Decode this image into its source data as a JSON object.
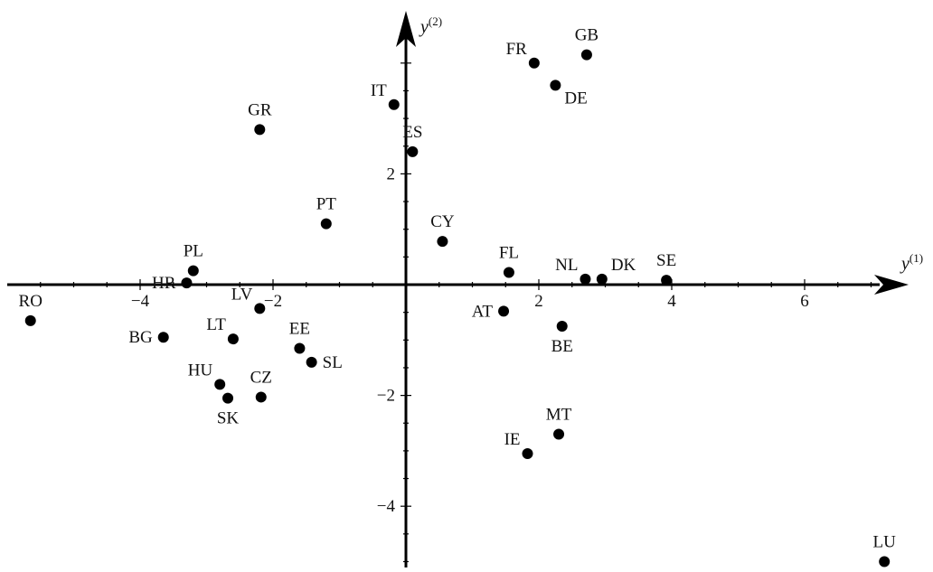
{
  "chart_data": {
    "type": "scatter",
    "title": "",
    "xlabel": "y",
    "xlabel_sup": "(1)",
    "ylabel": "y",
    "ylabel_sup": "(2)",
    "xlim": [
      -5.8,
      7.6
    ],
    "ylim": [
      -5.3,
      4.4
    ],
    "xticks": [
      -4,
      -2,
      2,
      4,
      6
    ],
    "xtick_labels": [
      "−4",
      "−2",
      "2",
      "4",
      "6"
    ],
    "yticks": [
      -4,
      -2,
      2
    ],
    "ytick_labels": [
      "−4",
      "−2",
      "2"
    ],
    "grid": false,
    "legend": "none",
    "point_color": "#000000",
    "points": [
      {
        "label": "RO",
        "x": -5.65,
        "y": -0.65,
        "lpos": "above"
      },
      {
        "label": "BG",
        "x": -3.65,
        "y": -0.95,
        "lpos": "left"
      },
      {
        "label": "HR",
        "x": -3.3,
        "y": 0.03,
        "lpos": "left"
      },
      {
        "label": "PL",
        "x": -3.2,
        "y": 0.25,
        "lpos": "above"
      },
      {
        "label": "LT",
        "x": -2.6,
        "y": -0.98,
        "lpos": "upleft"
      },
      {
        "label": "LV",
        "x": -2.2,
        "y": -0.43,
        "lpos": "upleft"
      },
      {
        "label": "HU",
        "x": -2.8,
        "y": -1.8,
        "lpos": "upleft"
      },
      {
        "label": "SK",
        "x": -2.68,
        "y": -2.05,
        "lpos": "below"
      },
      {
        "label": "CZ",
        "x": -2.18,
        "y": -2.03,
        "lpos": "above"
      },
      {
        "label": "EE",
        "x": -1.6,
        "y": -1.15,
        "lpos": "above"
      },
      {
        "label": "SL",
        "x": -1.42,
        "y": -1.4,
        "lpos": "right"
      },
      {
        "label": "GR",
        "x": -2.2,
        "y": 2.8,
        "lpos": "above"
      },
      {
        "label": "PT",
        "x": -1.2,
        "y": 1.1,
        "lpos": "above"
      },
      {
        "label": "IT",
        "x": -0.18,
        "y": 3.25,
        "lpos": "upleft"
      },
      {
        "label": "ES",
        "x": 0.1,
        "y": 2.4,
        "lpos": "above"
      },
      {
        "label": "CY",
        "x": 0.55,
        "y": 0.78,
        "lpos": "above"
      },
      {
        "label": "FL",
        "x": 1.55,
        "y": 0.22,
        "lpos": "above"
      },
      {
        "label": "AT",
        "x": 1.47,
        "y": -0.48,
        "lpos": "left"
      },
      {
        "label": "BE",
        "x": 2.35,
        "y": -0.75,
        "lpos": "below"
      },
      {
        "label": "NL",
        "x": 2.7,
        "y": 0.1,
        "lpos": "upleft"
      },
      {
        "label": "DK",
        "x": 2.95,
        "y": 0.1,
        "lpos": "upright"
      },
      {
        "label": "SE",
        "x": 3.92,
        "y": 0.08,
        "lpos": "above"
      },
      {
        "label": "FR",
        "x": 1.93,
        "y": 4.0,
        "lpos": "upleft"
      },
      {
        "label": "GB",
        "x": 2.72,
        "y": 4.15,
        "lpos": "above"
      },
      {
        "label": "DE",
        "x": 2.25,
        "y": 3.6,
        "lpos": "downright"
      },
      {
        "label": "IE",
        "x": 1.83,
        "y": -3.05,
        "lpos": "upleft"
      },
      {
        "label": "MT",
        "x": 2.3,
        "y": -2.7,
        "lpos": "above"
      },
      {
        "label": "LU",
        "x": 7.2,
        "y": -5.0,
        "lpos": "above"
      }
    ]
  }
}
